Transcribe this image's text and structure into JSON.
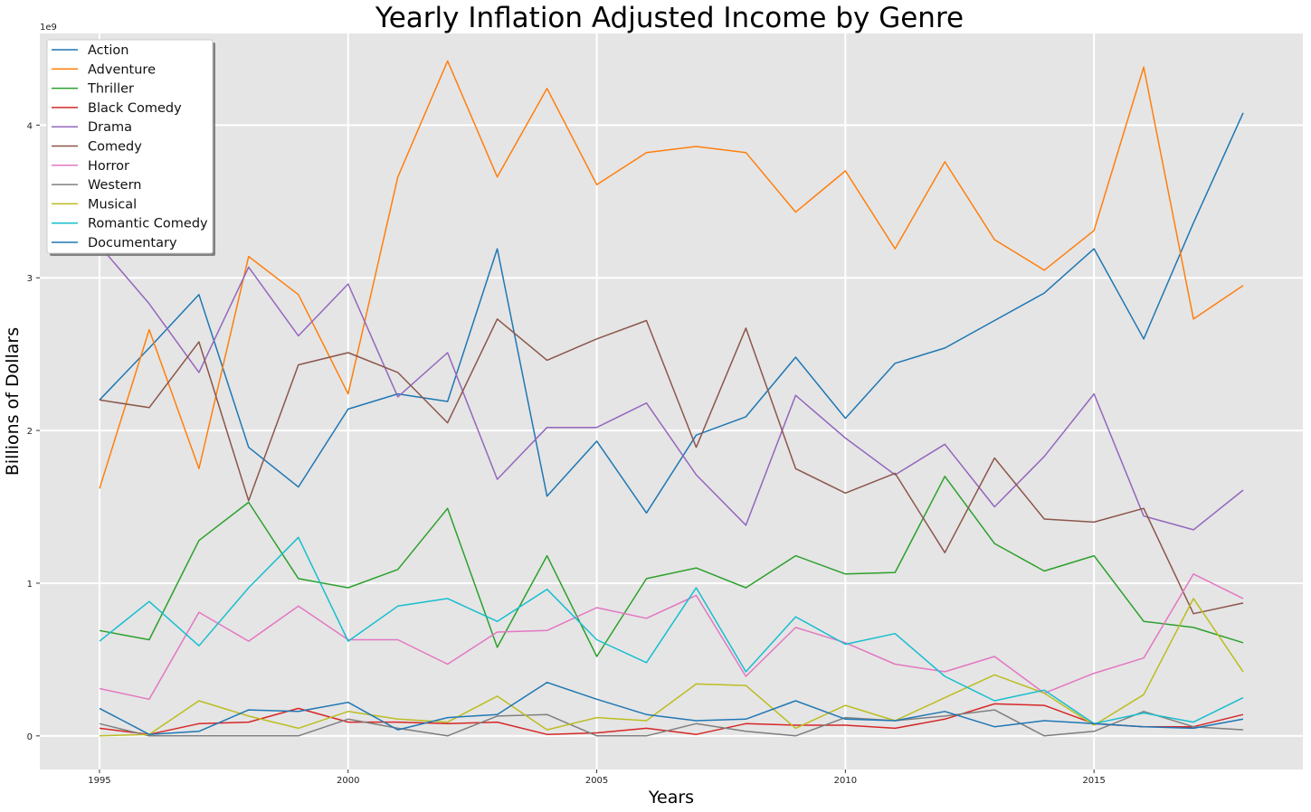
{
  "chart_data": {
    "type": "line",
    "title": "Yearly Inflation Adjusted Income by Genre",
    "xlabel": "Years",
    "ylabel": "Billions of Dollars",
    "y_offset_label": "1e9",
    "xlim": [
      1993.8,
      2019.2
    ],
    "ylim": [
      -0.22,
      4.6
    ],
    "x_ticks": [
      1995,
      2000,
      2005,
      2010,
      2015
    ],
    "y_ticks": [
      0,
      1,
      2,
      3,
      4
    ],
    "grid": true,
    "legend_placement": "top-left",
    "x": [
      1995,
      1996,
      1997,
      1998,
      1999,
      2000,
      2001,
      2002,
      2003,
      2004,
      2005,
      2006,
      2007,
      2008,
      2009,
      2010,
      2011,
      2012,
      2013,
      2014,
      2015,
      2016,
      2017,
      2018
    ],
    "series": [
      {
        "name": "Action",
        "color": "#1f77b4",
        "values": [
          2.2,
          2.54,
          2.89,
          1.89,
          1.63,
          2.14,
          2.24,
          2.19,
          3.19,
          1.57,
          1.93,
          1.46,
          1.97,
          2.09,
          2.48,
          2.08,
          2.44,
          2.54,
          2.72,
          2.9,
          3.19,
          2.6,
          3.36,
          4.08
        ]
      },
      {
        "name": "Adventure",
        "color": "#ff7f0e",
        "values": [
          1.62,
          2.66,
          1.75,
          3.14,
          2.89,
          2.24,
          3.66,
          4.42,
          3.66,
          4.24,
          3.61,
          3.82,
          3.86,
          3.82,
          3.43,
          3.7,
          3.19,
          3.76,
          3.25,
          3.05,
          3.31,
          4.38,
          2.73,
          2.95
        ]
      },
      {
        "name": "Thriller",
        "color": "#2ca02c",
        "values": [
          0.69,
          0.63,
          1.28,
          1.53,
          1.03,
          0.97,
          1.09,
          1.49,
          0.58,
          1.18,
          0.52,
          1.03,
          1.1,
          0.97,
          1.18,
          1.06,
          1.07,
          1.7,
          1.26,
          1.08,
          1.18,
          0.75,
          0.71,
          0.61
        ]
      },
      {
        "name": "Black Comedy",
        "color": "#d62728",
        "values": [
          0.05,
          0.01,
          0.08,
          0.09,
          0.18,
          0.09,
          0.09,
          0.08,
          0.09,
          0.01,
          0.02,
          0.05,
          0.01,
          0.08,
          0.07,
          0.07,
          0.05,
          0.11,
          0.21,
          0.2,
          0.08,
          0.06,
          0.06,
          0.14
        ]
      },
      {
        "name": "Drama",
        "color": "#9467bd",
        "values": [
          3.21,
          2.83,
          2.38,
          3.07,
          2.62,
          2.96,
          2.22,
          2.51,
          1.68,
          2.02,
          2.02,
          2.18,
          1.71,
          1.38,
          2.23,
          1.95,
          1.71,
          1.91,
          1.5,
          1.83,
          2.24,
          1.44,
          1.35,
          1.61
        ]
      },
      {
        "name": "Comedy",
        "color": "#8c564b",
        "values": [
          2.2,
          2.15,
          2.58,
          1.54,
          2.43,
          2.51,
          2.38,
          2.05,
          2.73,
          2.46,
          2.6,
          2.72,
          1.89,
          2.67,
          1.75,
          1.59,
          1.72,
          1.2,
          1.82,
          1.42,
          1.4,
          1.49,
          0.8,
          0.87
        ]
      },
      {
        "name": "Horror",
        "color": "#e377c2",
        "values": [
          0.31,
          0.24,
          0.81,
          0.62,
          0.85,
          0.63,
          0.63,
          0.47,
          0.68,
          0.69,
          0.84,
          0.77,
          0.92,
          0.39,
          0.71,
          0.61,
          0.47,
          0.42,
          0.52,
          0.28,
          0.41,
          0.51,
          1.06,
          0.9
        ]
      },
      {
        "name": "Western",
        "color": "#7f7f7f",
        "values": [
          0.08,
          0.0,
          0.0,
          0.0,
          0.0,
          0.11,
          0.05,
          0.0,
          0.13,
          0.14,
          0.0,
          0.0,
          0.08,
          0.03,
          0.0,
          0.12,
          0.1,
          0.13,
          0.17,
          0.0,
          0.03,
          0.16,
          0.06,
          0.04
        ]
      },
      {
        "name": "Musical",
        "color": "#bcbd22",
        "values": [
          0.0,
          0.01,
          0.23,
          0.13,
          0.05,
          0.16,
          0.11,
          0.09,
          0.26,
          0.04,
          0.12,
          0.1,
          0.34,
          0.33,
          0.05,
          0.2,
          0.1,
          0.25,
          0.4,
          0.28,
          0.07,
          0.27,
          0.9,
          0.42
        ]
      },
      {
        "name": "Romantic Comedy",
        "color": "#17becf",
        "values": [
          0.62,
          0.88,
          0.59,
          0.97,
          1.3,
          0.62,
          0.85,
          0.9,
          0.75,
          0.96,
          0.63,
          0.48,
          0.97,
          0.42,
          0.78,
          0.6,
          0.67,
          0.39,
          0.23,
          0.3,
          0.08,
          0.15,
          0.09,
          0.25
        ]
      },
      {
        "name": "Documentary",
        "color": "#1f77b4",
        "values": [
          0.18,
          0.01,
          0.03,
          0.17,
          0.16,
          0.22,
          0.04,
          0.12,
          0.14,
          0.35,
          0.24,
          0.14,
          0.1,
          0.11,
          0.23,
          0.11,
          0.1,
          0.16,
          0.06,
          0.1,
          0.08,
          0.06,
          0.05,
          0.11
        ]
      }
    ]
  }
}
